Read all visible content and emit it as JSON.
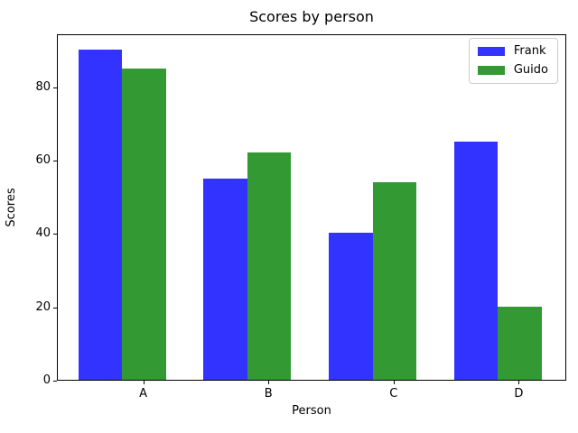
{
  "chart_data": {
    "type": "bar",
    "title": "Scores by person",
    "xlabel": "Person",
    "ylabel": "Scores",
    "categories": [
      "A",
      "B",
      "C",
      "D"
    ],
    "series": [
      {
        "name": "Frank",
        "color": "#3333ff",
        "values": [
          90,
          55,
          40,
          65
        ]
      },
      {
        "name": "Guido",
        "color": "#339933",
        "values": [
          85,
          62,
          54,
          20
        ]
      }
    ],
    "bar_width": 0.35,
    "ylim": [
      0,
      94.5
    ],
    "xlim": [
      -0.69,
      3.38
    ],
    "yticks": [
      0,
      20,
      40,
      60,
      80
    ],
    "grid": false,
    "legend_position": "upper right",
    "axis_color": "#000000",
    "background_color": "#ffffff"
  }
}
